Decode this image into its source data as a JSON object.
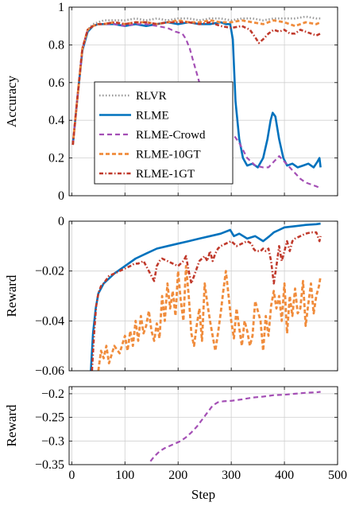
{
  "colors": {
    "RLVR": "#999999",
    "RLME": "#0072BD",
    "RLME-Crowd": "#A44FB5",
    "RLME-10GT": "#F08C3C",
    "RLME-1GT": "#C0392B"
  },
  "chart_data": [
    {
      "type": "line",
      "ylabel": "Accuracy",
      "xlim": [
        -5,
        500
      ],
      "ylim": [
        0,
        1
      ],
      "grid": true,
      "legend_position": "center-left",
      "xticks": [
        0,
        100,
        200,
        300,
        400,
        500
      ],
      "yticks": [
        {
          "v": 0,
          "label": "0"
        },
        {
          "v": 0.2,
          "label": "0.2"
        },
        {
          "v": 0.4,
          "label": "0.4"
        },
        {
          "v": 0.6,
          "label": "0.6"
        },
        {
          "v": 0.8,
          "label": "0.8"
        },
        {
          "v": 1,
          "label": "1"
        }
      ],
      "series": [
        {
          "name": "RLVR",
          "style": "dotted",
          "x": [
            2,
            10,
            20,
            30,
            40,
            50,
            60,
            80,
            100,
            120,
            140,
            160,
            180,
            200,
            220,
            240,
            260,
            280,
            300,
            320,
            340,
            360,
            380,
            400,
            420,
            440,
            460,
            468
          ],
          "y": [
            0.27,
            0.5,
            0.78,
            0.88,
            0.91,
            0.92,
            0.93,
            0.93,
            0.93,
            0.94,
            0.93,
            0.94,
            0.93,
            0.94,
            0.94,
            0.93,
            0.94,
            0.94,
            0.93,
            0.94,
            0.94,
            0.93,
            0.94,
            0.94,
            0.94,
            0.95,
            0.94,
            0.94
          ]
        },
        {
          "name": "RLME",
          "style": "solid",
          "x": [
            2,
            10,
            20,
            30,
            40,
            50,
            60,
            80,
            100,
            120,
            140,
            160,
            180,
            200,
            220,
            240,
            260,
            280,
            290,
            298,
            303,
            308,
            315,
            322,
            330,
            340,
            350,
            360,
            368,
            374,
            378,
            383,
            390,
            398,
            405,
            415,
            425,
            435,
            445,
            455,
            462,
            466,
            468
          ],
          "y": [
            0.27,
            0.5,
            0.77,
            0.87,
            0.9,
            0.91,
            0.91,
            0.91,
            0.9,
            0.91,
            0.9,
            0.91,
            0.92,
            0.91,
            0.92,
            0.91,
            0.91,
            0.92,
            0.91,
            0.91,
            0.83,
            0.5,
            0.3,
            0.2,
            0.16,
            0.17,
            0.15,
            0.2,
            0.3,
            0.4,
            0.44,
            0.42,
            0.3,
            0.2,
            0.16,
            0.17,
            0.15,
            0.16,
            0.17,
            0.15,
            0.18,
            0.2,
            0.15
          ]
        },
        {
          "name": "RLME-Crowd",
          "style": "dashed",
          "x": [
            2,
            10,
            20,
            30,
            40,
            50,
            60,
            80,
            100,
            120,
            140,
            160,
            180,
            195,
            208,
            215,
            222,
            228,
            234,
            240,
            246,
            252,
            258,
            265,
            280,
            295,
            305,
            315,
            330,
            345,
            360,
            370,
            380,
            390,
            400,
            410,
            420,
            430,
            440,
            450,
            460,
            468
          ],
          "y": [
            0.27,
            0.5,
            0.78,
            0.88,
            0.9,
            0.91,
            0.91,
            0.91,
            0.9,
            0.91,
            0.91,
            0.9,
            0.89,
            0.87,
            0.86,
            0.83,
            0.78,
            0.72,
            0.66,
            0.6,
            0.55,
            0.5,
            0.45,
            0.4,
            0.36,
            0.34,
            0.32,
            0.28,
            0.2,
            0.16,
            0.15,
            0.15,
            0.18,
            0.21,
            0.18,
            0.15,
            0.12,
            0.09,
            0.07,
            0.06,
            0.05,
            0.04
          ]
        },
        {
          "name": "RLME-10GT",
          "style": "dashed-thick",
          "x": [
            2,
            10,
            20,
            30,
            40,
            50,
            60,
            80,
            100,
            120,
            140,
            160,
            180,
            200,
            220,
            240,
            260,
            280,
            300,
            320,
            340,
            360,
            380,
            400,
            420,
            440,
            460,
            468
          ],
          "y": [
            0.27,
            0.5,
            0.78,
            0.88,
            0.9,
            0.91,
            0.91,
            0.92,
            0.91,
            0.92,
            0.92,
            0.91,
            0.92,
            0.93,
            0.92,
            0.92,
            0.93,
            0.92,
            0.92,
            0.93,
            0.92,
            0.91,
            0.93,
            0.92,
            0.9,
            0.92,
            0.91,
            0.92
          ]
        },
        {
          "name": "RLME-1GT",
          "style": "dashdot",
          "x": [
            2,
            10,
            20,
            30,
            40,
            50,
            60,
            80,
            100,
            120,
            140,
            160,
            180,
            200,
            220,
            240,
            260,
            280,
            300,
            320,
            335,
            345,
            352,
            360,
            370,
            380,
            390,
            400,
            410,
            420,
            430,
            440,
            450,
            460,
            468
          ],
          "y": [
            0.27,
            0.5,
            0.78,
            0.88,
            0.9,
            0.91,
            0.91,
            0.92,
            0.91,
            0.92,
            0.92,
            0.91,
            0.92,
            0.92,
            0.92,
            0.91,
            0.92,
            0.9,
            0.89,
            0.9,
            0.88,
            0.84,
            0.81,
            0.83,
            0.86,
            0.88,
            0.87,
            0.88,
            0.86,
            0.86,
            0.88,
            0.87,
            0.86,
            0.85,
            0.86
          ]
        }
      ]
    },
    {
      "type": "line",
      "ylabel": "Reward",
      "xlim": [
        -5,
        500
      ],
      "ylim": [
        -0.06,
        0
      ],
      "grid": true,
      "xticks": [
        0,
        100,
        200,
        300,
        400,
        500
      ],
      "yticks": [
        {
          "v": 0,
          "label": "0"
        },
        {
          "v": -0.02,
          "label": "−0.02"
        },
        {
          "v": -0.04,
          "label": "−0.04"
        },
        {
          "v": -0.06,
          "label": "−0.06"
        }
      ],
      "series": [
        {
          "name": "RLME",
          "style": "solid",
          "x": [
            36,
            40,
            45,
            50,
            60,
            70,
            80,
            100,
            120,
            140,
            160,
            180,
            200,
            220,
            240,
            260,
            280,
            298,
            305,
            315,
            330,
            345,
            360,
            372,
            380,
            390,
            400,
            420,
            440,
            460,
            468
          ],
          "y": [
            -0.06,
            -0.045,
            -0.035,
            -0.029,
            -0.025,
            -0.023,
            -0.021,
            -0.018,
            -0.015,
            -0.013,
            -0.011,
            -0.01,
            -0.009,
            -0.008,
            -0.007,
            -0.006,
            -0.005,
            -0.0035,
            -0.006,
            -0.005,
            -0.007,
            -0.006,
            -0.008,
            -0.006,
            -0.0045,
            -0.0035,
            -0.0025,
            -0.002,
            -0.0015,
            -0.0012,
            -0.001
          ]
        },
        {
          "name": "RLME-10GT",
          "style": "dashed-thick",
          "x": [
            50,
            55,
            60,
            65,
            70,
            80,
            90,
            100,
            105,
            110,
            115,
            120,
            125,
            130,
            135,
            140,
            145,
            150,
            155,
            160,
            165,
            170,
            175,
            180,
            185,
            190,
            195,
            200,
            205,
            210,
            215,
            220,
            225,
            230,
            235,
            240,
            245,
            250,
            255,
            260,
            265,
            270,
            275,
            280,
            285,
            290,
            295,
            300,
            305,
            310,
            315,
            320,
            325,
            330,
            335,
            340,
            345,
            350,
            355,
            360,
            365,
            370,
            375,
            380,
            385,
            390,
            395,
            400,
            405,
            410,
            415,
            420,
            425,
            430,
            435,
            440,
            445,
            450,
            455,
            460,
            465,
            468
          ],
          "y": [
            -0.06,
            -0.052,
            -0.055,
            -0.05,
            -0.057,
            -0.05,
            -0.053,
            -0.046,
            -0.052,
            -0.044,
            -0.05,
            -0.04,
            -0.048,
            -0.038,
            -0.045,
            -0.042,
            -0.036,
            -0.044,
            -0.048,
            -0.041,
            -0.047,
            -0.03,
            -0.04,
            -0.025,
            -0.035,
            -0.028,
            -0.038,
            -0.02,
            -0.032,
            -0.04,
            -0.018,
            -0.03,
            -0.045,
            -0.05,
            -0.042,
            -0.035,
            -0.048,
            -0.025,
            -0.033,
            -0.04,
            -0.046,
            -0.052,
            -0.045,
            -0.037,
            -0.028,
            -0.02,
            -0.03,
            -0.04,
            -0.047,
            -0.035,
            -0.043,
            -0.05,
            -0.04,
            -0.044,
            -0.05,
            -0.046,
            -0.032,
            -0.036,
            -0.04,
            -0.052,
            -0.038,
            -0.046,
            -0.034,
            -0.028,
            -0.035,
            -0.03,
            -0.04,
            -0.025,
            -0.045,
            -0.03,
            -0.038,
            -0.027,
            -0.037,
            -0.035,
            -0.024,
            -0.042,
            -0.033,
            -0.025,
            -0.037,
            -0.03,
            -0.026,
            -0.022
          ]
        },
        {
          "name": "RLME-1GT",
          "style": "dashdot",
          "x": [
            38,
            42,
            46,
            50,
            55,
            60,
            70,
            80,
            90,
            100,
            110,
            118,
            125,
            135,
            145,
            155,
            160,
            165,
            170,
            180,
            190,
            200,
            210,
            215,
            220,
            225,
            230,
            240,
            250,
            255,
            260,
            265,
            270,
            275,
            280,
            290,
            300,
            310,
            320,
            330,
            338,
            342,
            346,
            350,
            355,
            360,
            365,
            370,
            375,
            380,
            385,
            390,
            395,
            400,
            405,
            410,
            415,
            420,
            430,
            440,
            450,
            460,
            466,
            468
          ],
          "y": [
            -0.06,
            -0.045,
            -0.034,
            -0.029,
            -0.026,
            -0.025,
            -0.022,
            -0.021,
            -0.02,
            -0.019,
            -0.018,
            -0.017,
            -0.017,
            -0.016,
            -0.02,
            -0.024,
            -0.018,
            -0.016,
            -0.015,
            -0.016,
            -0.017,
            -0.018,
            -0.016,
            -0.014,
            -0.02,
            -0.025,
            -0.022,
            -0.016,
            -0.014,
            -0.016,
            -0.012,
            -0.016,
            -0.013,
            -0.011,
            -0.01,
            -0.009,
            -0.008,
            -0.01,
            -0.009,
            -0.008,
            -0.009,
            -0.011,
            -0.012,
            -0.012,
            -0.012,
            -0.011,
            -0.012,
            -0.011,
            -0.016,
            -0.025,
            -0.018,
            -0.01,
            -0.016,
            -0.012,
            -0.008,
            -0.012,
            -0.008,
            -0.007,
            -0.006,
            -0.005,
            -0.0045,
            -0.0045,
            -0.008,
            -0.006
          ]
        }
      ]
    },
    {
      "type": "line",
      "ylabel": "Reward",
      "xlabel": "Step",
      "xlim": [
        -5,
        500
      ],
      "ylim": [
        -0.35,
        -0.185
      ],
      "grid": true,
      "xticks": [
        0,
        100,
        200,
        300,
        400,
        500
      ],
      "yticks": [
        {
          "v": -0.2,
          "label": "−0.2"
        },
        {
          "v": -0.25,
          "label": "−0.25"
        },
        {
          "v": -0.3,
          "label": "−0.3"
        },
        {
          "v": -0.35,
          "label": "−0.35"
        }
      ],
      "series": [
        {
          "name": "RLME-Crowd",
          "style": "dashed",
          "x": [
            148,
            155,
            165,
            175,
            185,
            195,
            205,
            215,
            225,
            235,
            245,
            255,
            265,
            275,
            285,
            300,
            320,
            340,
            360,
            380,
            400,
            420,
            440,
            460,
            468
          ],
          "y": [
            -0.343,
            -0.333,
            -0.322,
            -0.315,
            -0.31,
            -0.305,
            -0.3,
            -0.292,
            -0.282,
            -0.27,
            -0.255,
            -0.24,
            -0.225,
            -0.218,
            -0.216,
            -0.215,
            -0.212,
            -0.208,
            -0.206,
            -0.203,
            -0.202,
            -0.2,
            -0.198,
            -0.197,
            -0.196
          ]
        }
      ]
    }
  ],
  "legend": {
    "entries": [
      "RLVR",
      "RLME",
      "RLME-Crowd",
      "RLME-10GT",
      "RLME-1GT"
    ]
  }
}
